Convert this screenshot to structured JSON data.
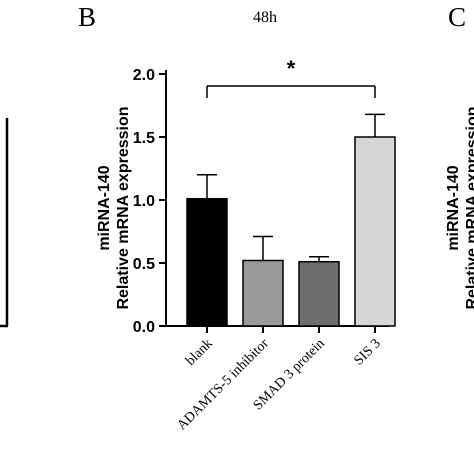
{
  "panel_labels": {
    "left": "B",
    "right": "C"
  },
  "right_panel_ylabel_fragment": {
    "line1": "miRNA-140",
    "line2": "Relative mRNA expression"
  },
  "chart_data": {
    "type": "bar",
    "title": "48h",
    "ylabel_line1": "miRNA-140",
    "ylabel_line2": "Relative mRNA expression",
    "categories": [
      "blank",
      "ADAMTS-5 inhibitor",
      "SMAD 3 protein",
      "SIS 3"
    ],
    "values": [
      1.01,
      0.52,
      0.51,
      1.5
    ],
    "errors": [
      0.19,
      0.19,
      0.04,
      0.18
    ],
    "bar_colors": [
      "#000000",
      "#9a9a9a",
      "#6e6e6e",
      "#d6d6d6"
    ],
    "ylim": [
      0,
      2.0
    ],
    "yticks": [
      "0.0",
      "0.5",
      "1.0",
      "1.5",
      "2.0"
    ],
    "grid": false,
    "significance": {
      "from": 0,
      "to": 3,
      "label": "*"
    }
  }
}
